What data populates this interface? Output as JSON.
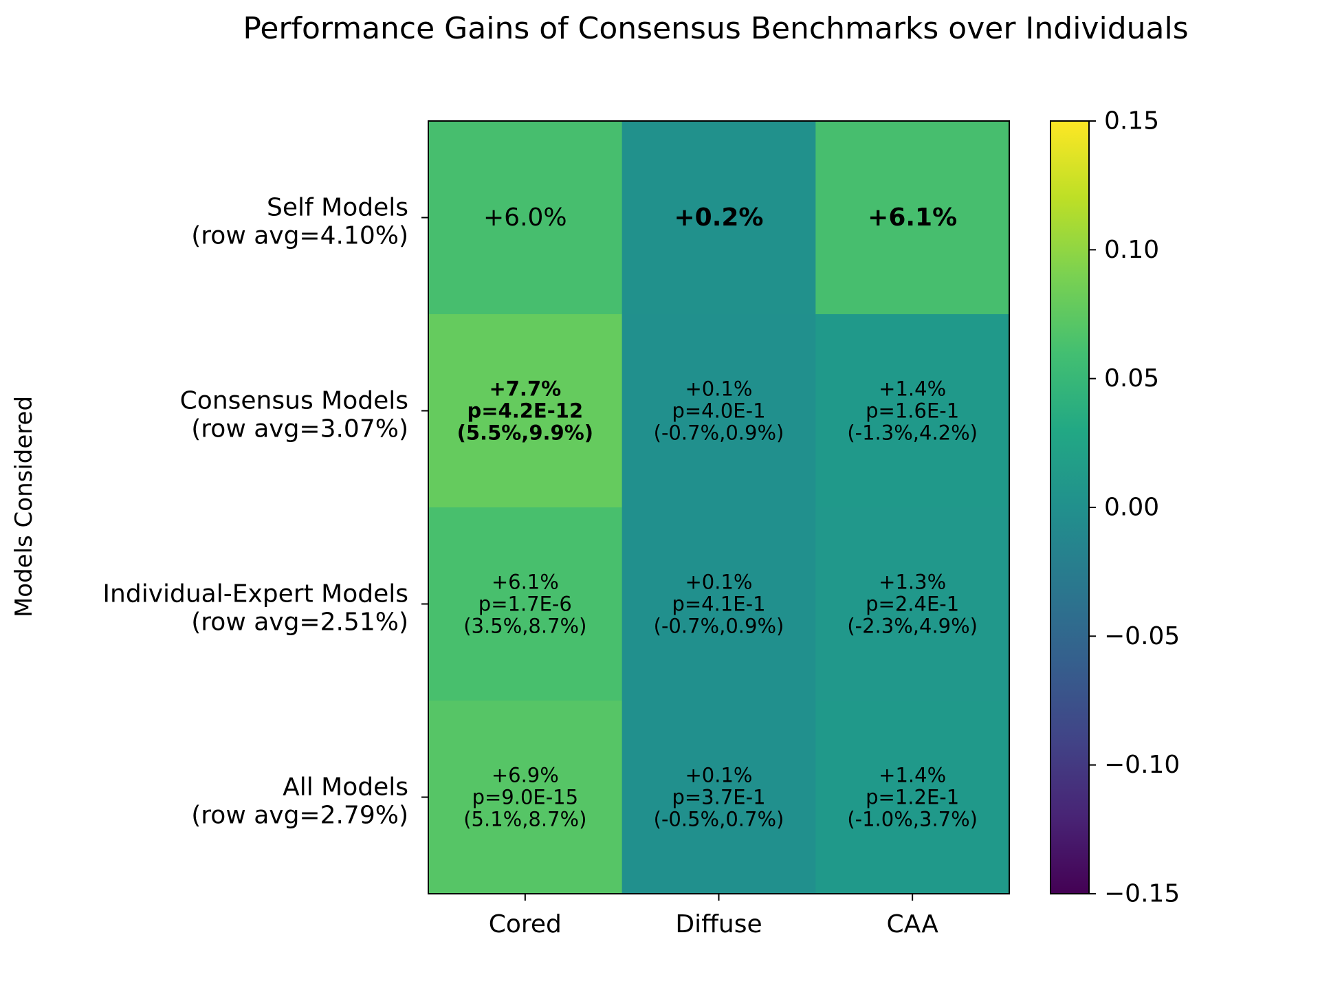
{
  "chart_data": {
    "type": "heatmap",
    "title": "Performance Gains of Consensus Benchmarks over Individuals",
    "ylabel": "Models Considered",
    "xlabel": "",
    "columns": [
      "Cored",
      "Diffuse",
      "CAA"
    ],
    "rows": [
      {
        "label": "Self Models",
        "row_avg_label": "(row avg=4.10%)"
      },
      {
        "label": "Consensus Models",
        "row_avg_label": "(row avg=3.07%)"
      },
      {
        "label": "Individual-Expert Models",
        "row_avg_label": "(row avg=2.51%)"
      },
      {
        "label": "All Models",
        "row_avg_label": "(row avg=2.79%)"
      }
    ],
    "values": [
      [
        0.06,
        0.002,
        0.061
      ],
      [
        0.077,
        0.001,
        0.014
      ],
      [
        0.061,
        0.001,
        0.013
      ],
      [
        0.069,
        0.001,
        0.014
      ]
    ],
    "cell_text": [
      [
        {
          "gain": "+6.0%",
          "p": "",
          "ci": "",
          "bold": false
        },
        {
          "gain": "+0.2%",
          "p": "",
          "ci": "",
          "bold": true
        },
        {
          "gain": "+6.1%",
          "p": "",
          "ci": "",
          "bold": true
        }
      ],
      [
        {
          "gain": "+7.7%",
          "p": "p=4.2E-12",
          "ci": "(5.5%,9.9%)",
          "bold": true
        },
        {
          "gain": "+0.1%",
          "p": "p=4.0E-1",
          "ci": "(-0.7%,0.9%)",
          "bold": false
        },
        {
          "gain": "+1.4%",
          "p": "p=1.6E-1",
          "ci": "(-1.3%,4.2%)",
          "bold": false
        }
      ],
      [
        {
          "gain": "+6.1%",
          "p": "p=1.7E-6",
          "ci": "(3.5%,8.7%)",
          "bold": false
        },
        {
          "gain": "+0.1%",
          "p": "p=4.1E-1",
          "ci": "(-0.7%,0.9%)",
          "bold": false
        },
        {
          "gain": "+1.3%",
          "p": "p=2.4E-1",
          "ci": "(-2.3%,4.9%)",
          "bold": false
        }
      ],
      [
        {
          "gain": "+6.9%",
          "p": "p=9.0E-15",
          "ci": "(5.1%,8.7%)",
          "bold": false
        },
        {
          "gain": "+0.1%",
          "p": "p=3.7E-1",
          "ci": "(-0.5%,0.7%)",
          "bold": false
        },
        {
          "gain": "+1.4%",
          "p": "p=1.2E-1",
          "ci": "(-1.0%,3.7%)",
          "bold": false
        }
      ]
    ],
    "colorbar": {
      "range": [
        -0.15,
        0.15
      ],
      "ticks": [
        0.15,
        0.1,
        0.05,
        0.0,
        -0.05,
        -0.1,
        -0.15
      ],
      "tick_labels": [
        "0.15",
        "0.10",
        "0.05",
        "0.00",
        "−0.05",
        "−0.10",
        "−0.15"
      ],
      "colormap": "viridis"
    },
    "cell_colors": [
      [
        "#47be6e",
        "#21918c",
        "#47be6e"
      ],
      [
        "#65cb5e",
        "#21908d",
        "#20998a"
      ],
      [
        "#48bf6d",
        "#21908d",
        "#21988b"
      ],
      [
        "#56c566",
        "#21908d",
        "#20998a"
      ]
    ],
    "grid": false,
    "legend": "none"
  }
}
